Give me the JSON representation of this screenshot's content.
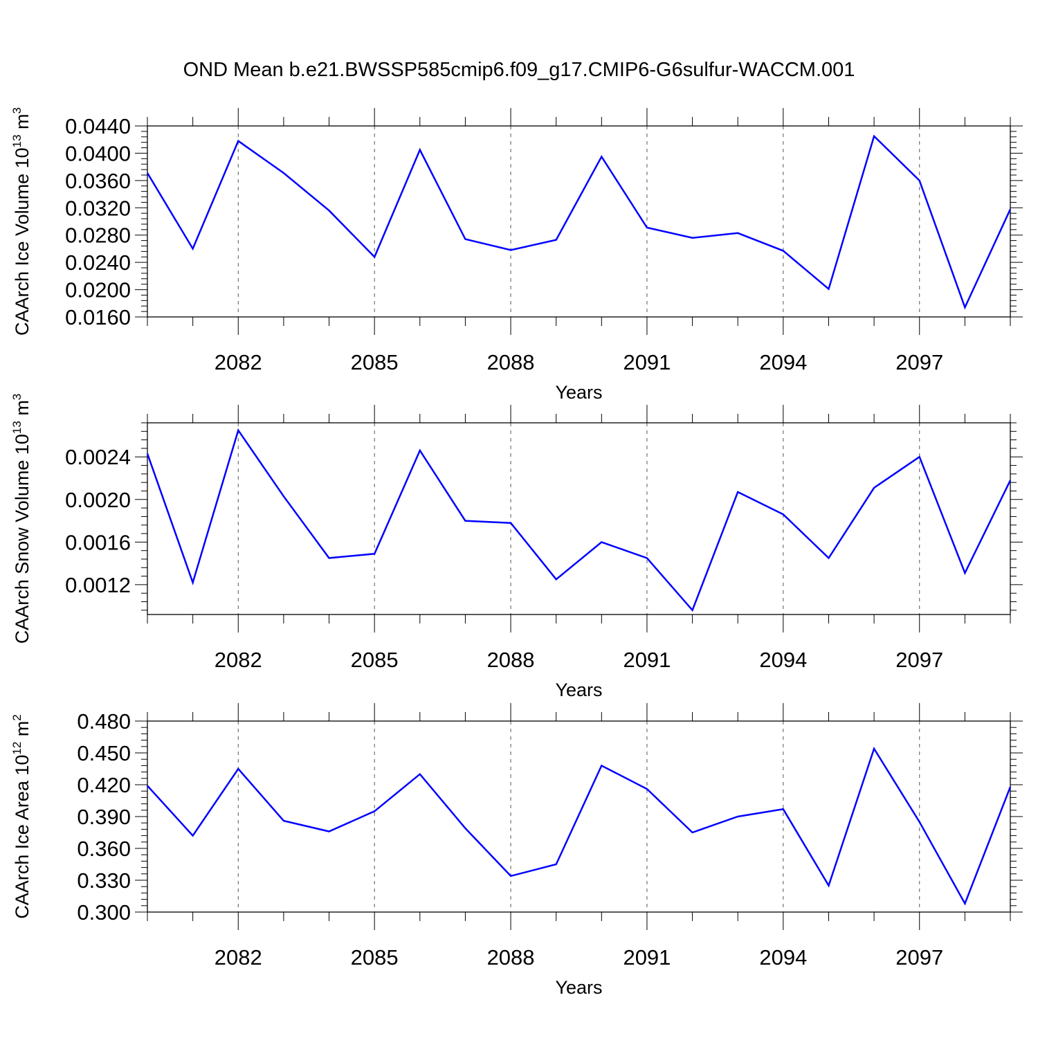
{
  "figure_title": "OND Mean b.e21.BWSSP585cmip6.f09_g17.CMIP6-G6sulfur-WACCM.001",
  "colors": {
    "line": "#0000ff",
    "axis": "#000000",
    "grid": "#555555"
  },
  "chart_data": [
    {
      "type": "line",
      "ylabel_main": "CAArch Ice Volume 10",
      "ylabel_exp": "13",
      "ylabel_unit": " m",
      "ylabel_unit_exp": "3",
      "xlabel": "Years",
      "x": [
        2080,
        2081,
        2082,
        2083,
        2084,
        2085,
        2086,
        2087,
        2088,
        2089,
        2090,
        2091,
        2092,
        2093,
        2094,
        2095,
        2096,
        2097,
        2098,
        2099
      ],
      "values": [
        0.0371,
        0.026,
        0.0418,
        0.0371,
        0.0316,
        0.0248,
        0.0405,
        0.0274,
        0.0258,
        0.0273,
        0.0395,
        0.0291,
        0.0276,
        0.0283,
        0.0257,
        0.0201,
        0.0425,
        0.036,
        0.0174,
        0.0318
      ],
      "xlim": [
        2080,
        2099
      ],
      "ylim": [
        0.016,
        0.044
      ],
      "yticks": [
        "0.0160",
        "0.0200",
        "0.0240",
        "0.0280",
        "0.0320",
        "0.0360",
        "0.0400",
        "0.0440"
      ],
      "xticks": [
        "2082",
        "2085",
        "2088",
        "2091",
        "2094",
        "2097"
      ],
      "xgrid": "dashed vertical at labeled years"
    },
    {
      "type": "line",
      "ylabel_main": "CAArch Snow Volume 10",
      "ylabel_exp": "13",
      "ylabel_unit": " m",
      "ylabel_unit_exp": "3",
      "xlabel": "Years",
      "x": [
        2080,
        2081,
        2082,
        2083,
        2084,
        2085,
        2086,
        2087,
        2088,
        2089,
        2090,
        2091,
        2092,
        2093,
        2094,
        2095,
        2096,
        2097,
        2098,
        2099
      ],
      "values": [
        0.00243,
        0.00122,
        0.00265,
        0.00203,
        0.00145,
        0.00149,
        0.00246,
        0.0018,
        0.00178,
        0.00125,
        0.0016,
        0.00145,
        0.00096,
        0.00207,
        0.00186,
        0.00145,
        0.00211,
        0.0024,
        0.00131,
        0.00218
      ],
      "xlim": [
        2080,
        2099
      ],
      "ylim": [
        0.00092,
        0.00272
      ],
      "yticks": [
        "0.0012",
        "0.0016",
        "0.0020",
        "0.0024"
      ],
      "xticks": [
        "2082",
        "2085",
        "2088",
        "2091",
        "2094",
        "2097"
      ],
      "xgrid": "dashed vertical at labeled years"
    },
    {
      "type": "line",
      "ylabel_main": "CAArch Ice Area 10",
      "ylabel_exp": "12",
      "ylabel_unit": " m",
      "ylabel_unit_exp": "2",
      "xlabel": "Years",
      "x": [
        2080,
        2081,
        2082,
        2083,
        2084,
        2085,
        2086,
        2087,
        2088,
        2089,
        2090,
        2091,
        2092,
        2093,
        2094,
        2095,
        2096,
        2097,
        2098,
        2099
      ],
      "values": [
        0.419,
        0.372,
        0.435,
        0.386,
        0.376,
        0.395,
        0.43,
        0.379,
        0.334,
        0.345,
        0.438,
        0.416,
        0.375,
        0.39,
        0.397,
        0.325,
        0.454,
        0.385,
        0.308,
        0.418
      ],
      "xlim": [
        2080,
        2099
      ],
      "ylim": [
        0.3,
        0.48
      ],
      "yticks": [
        "0.300",
        "0.330",
        "0.360",
        "0.390",
        "0.420",
        "0.450",
        "0.480"
      ],
      "xticks": [
        "2082",
        "2085",
        "2088",
        "2091",
        "2094",
        "2097"
      ],
      "xgrid": "dashed vertical at labeled years"
    }
  ]
}
